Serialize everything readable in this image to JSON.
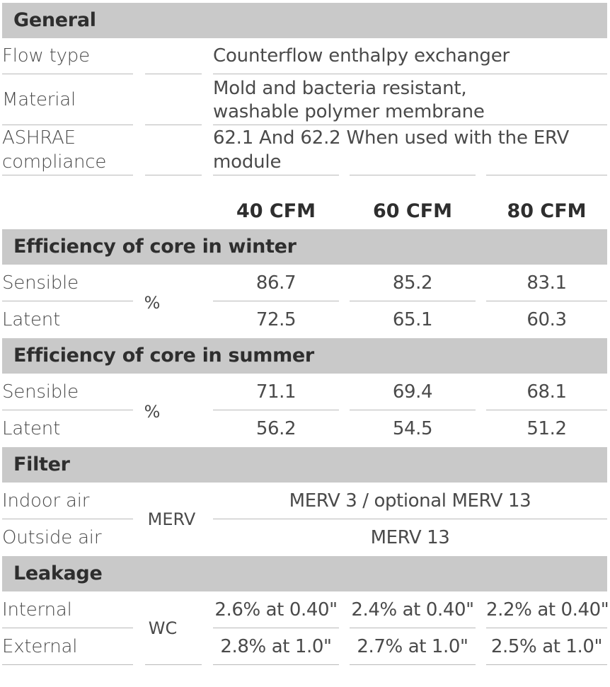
{
  "general": {
    "title": "General",
    "rows": [
      {
        "label": "Flow type",
        "value": "Counterflow enthalpy exchanger"
      },
      {
        "label_lines": [
          "Material"
        ],
        "value_lines": [
          "Mold and bacteria resistant,",
          "washable polymer membrane"
        ]
      },
      {
        "label_lines": [
          "ASHRAE",
          "compliance"
        ],
        "value_lines": [
          "62.1 And 62.2 When used with the ERV",
          "module"
        ]
      }
    ]
  },
  "columns": [
    "40 CFM",
    "60 CFM",
    "80 CFM"
  ],
  "winter": {
    "title": "Efficiency  of core in winter",
    "unit": "%",
    "rows": [
      {
        "label": "Sensible",
        "values": [
          "86.7",
          "85.2",
          "83.1"
        ]
      },
      {
        "label": "Latent",
        "values": [
          "72.5",
          "65.1",
          "60.3"
        ]
      }
    ]
  },
  "summer": {
    "title": "Efficiency  of core in summer",
    "unit": "%",
    "rows": [
      {
        "label": "Sensible",
        "values": [
          "71.1",
          "69.4",
          "68.1"
        ]
      },
      {
        "label": "Latent",
        "values": [
          "56.2",
          "54.5",
          "51.2"
        ]
      }
    ]
  },
  "filter": {
    "title": "Filter",
    "unit": "MERV",
    "rows": [
      {
        "label": "Indoor air",
        "value": "MERV 3 / optional MERV 13"
      },
      {
        "label": "Outside air",
        "value": "MERV 13"
      }
    ]
  },
  "leakage": {
    "title": "Leakage",
    "unit": "WC",
    "rows": [
      {
        "label": "Internal",
        "values": [
          "2.6% at 0.40\"",
          "2.4% at 0.40\"",
          "2.2% at 0.40\""
        ]
      },
      {
        "label": "External",
        "values": [
          "2.8% at 1.0\"",
          "2.7% at 1.0\"",
          "2.5% at 1.0\""
        ]
      }
    ]
  }
}
